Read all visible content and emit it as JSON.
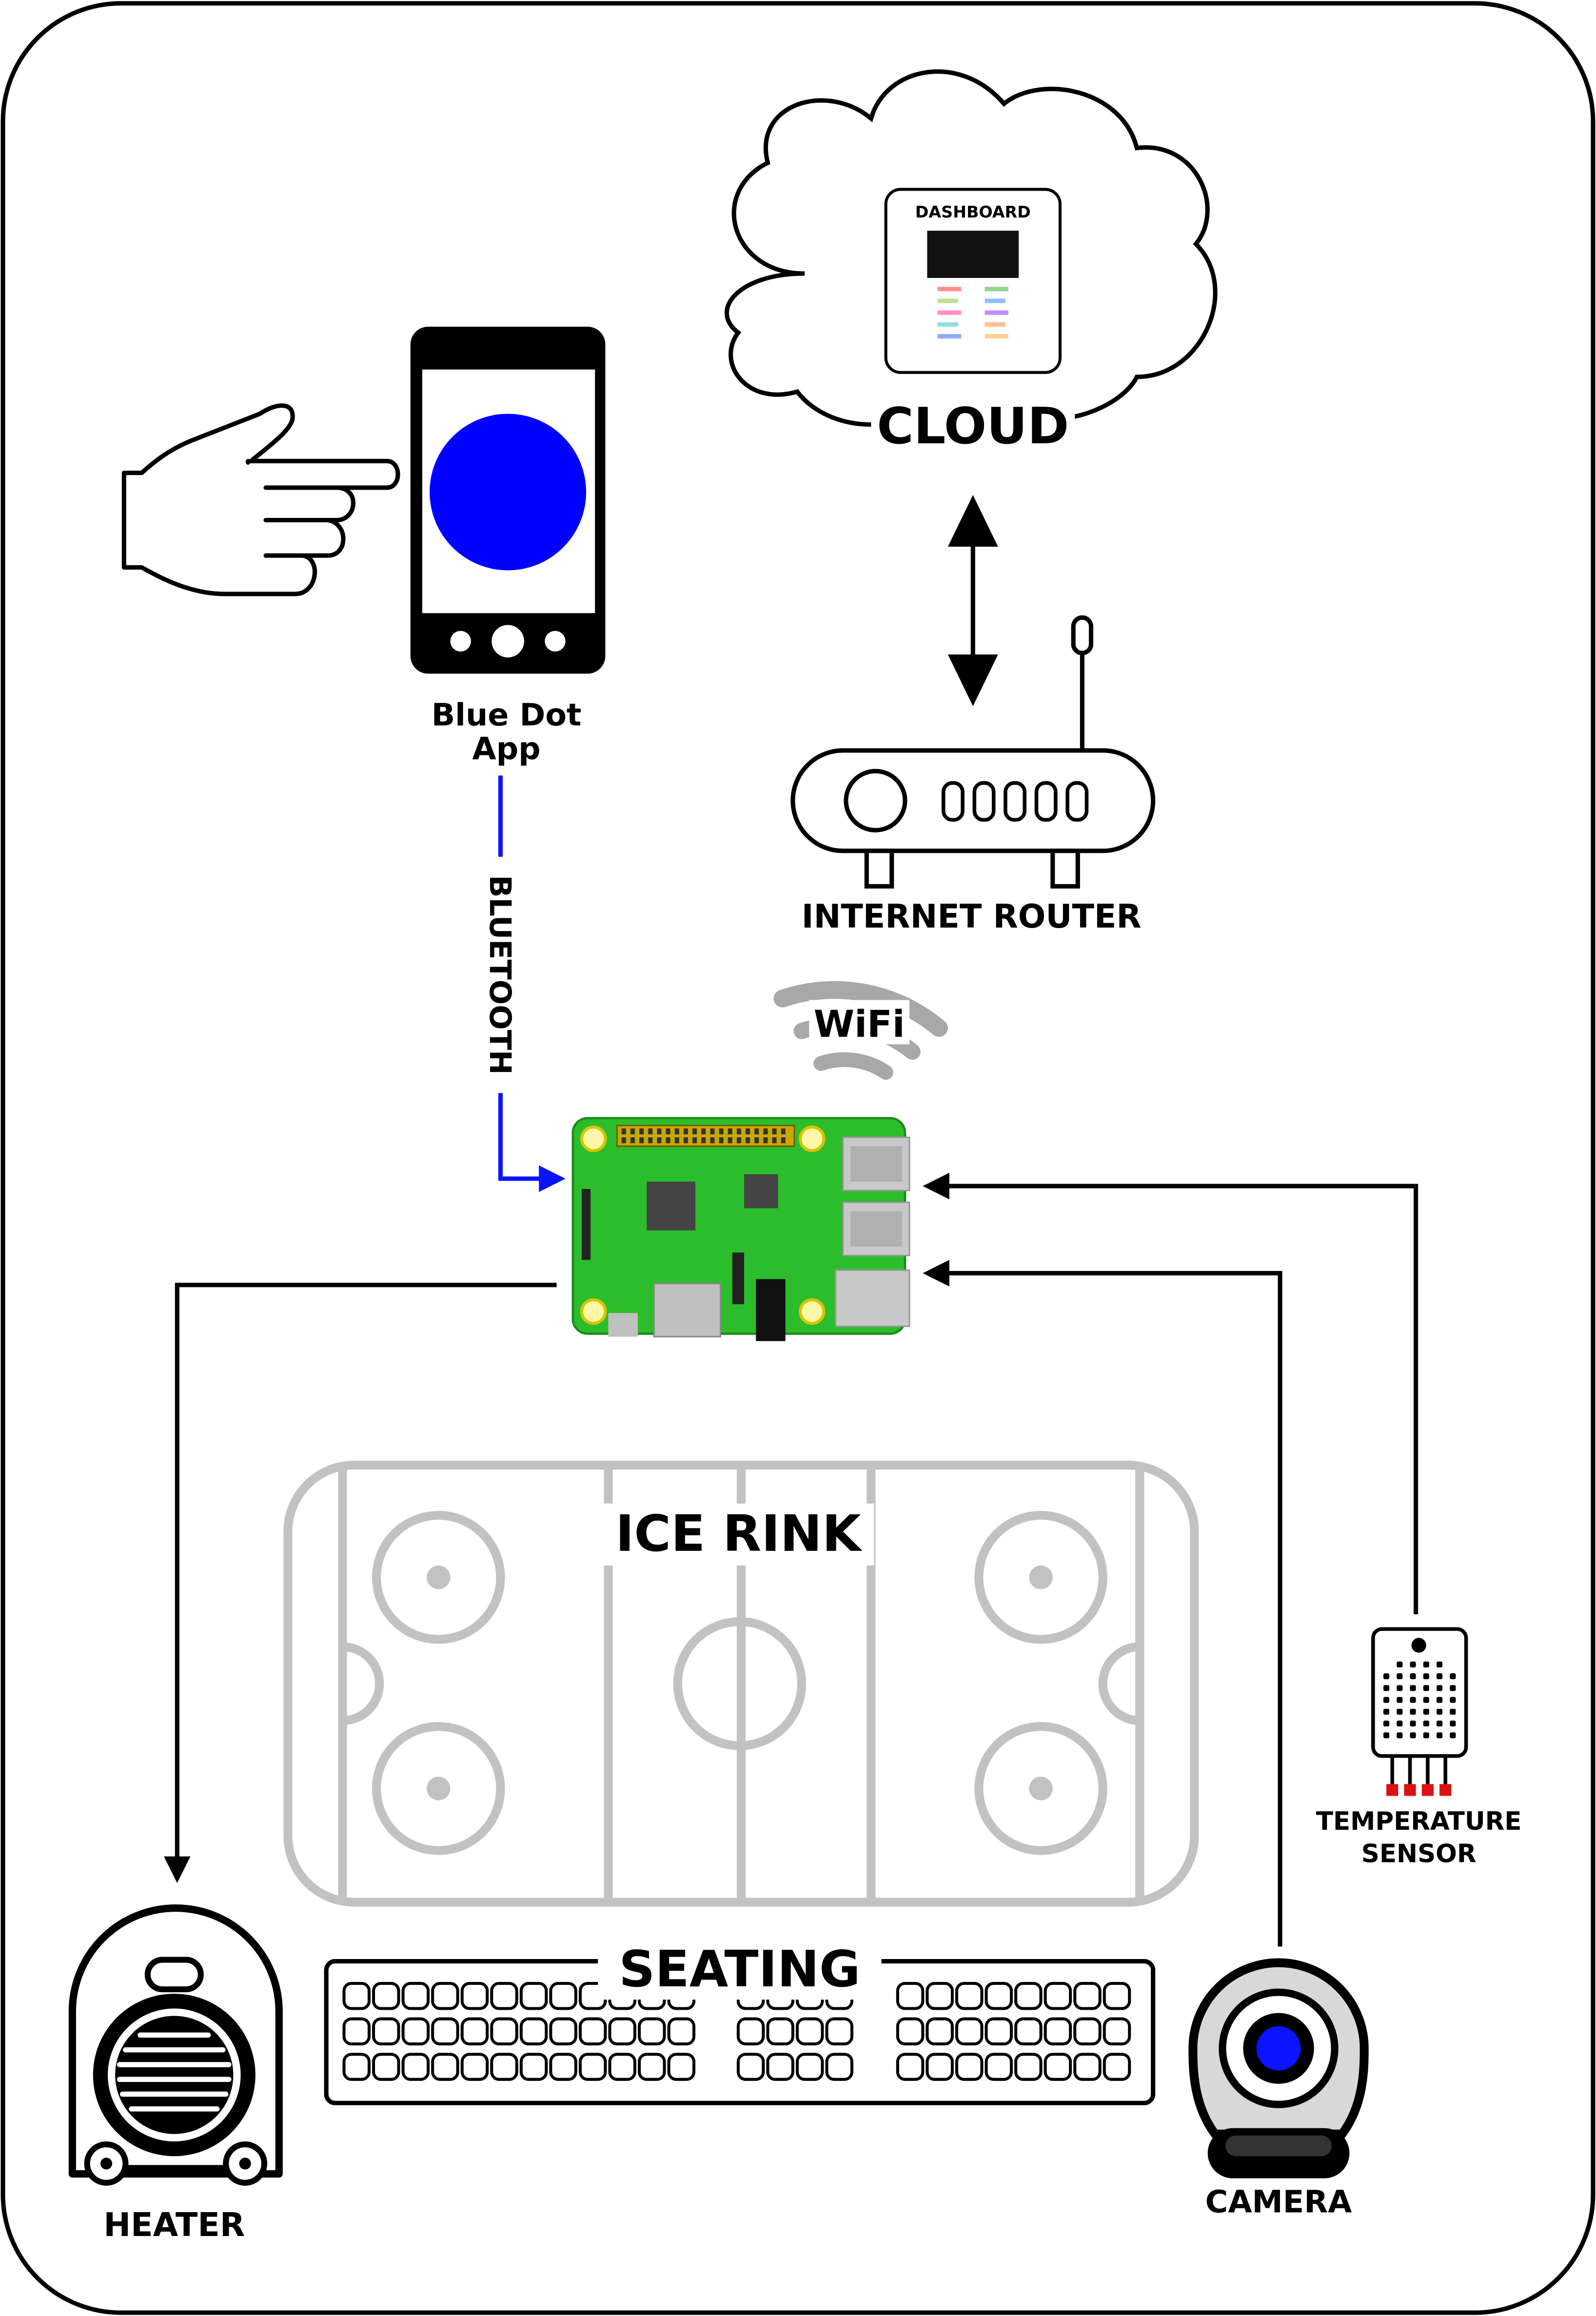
{
  "labels": {
    "cloud": "CLOUD",
    "dashboard": "DASHBOARD",
    "app_line1": "Blue Dot",
    "app_line2": "App",
    "bluetooth": "BLUETOOTH",
    "router": "INTERNET ROUTER",
    "wifi": "WiFi",
    "ice_rink": "ICE RINK",
    "seating": "SEATING",
    "temp_line1": "TEMPERATURE",
    "temp_line2": "SENSOR",
    "heater": "HEATER",
    "camera": "CAMERA"
  },
  "colors": {
    "bluetooth": "#0a14ff",
    "blue_dot": "#0000ff",
    "pcb_green": "#2bbd2b",
    "rink_gray": "#c2c2c2",
    "sensor_pins": "#dd1111"
  },
  "icons": [
    "hand-icon",
    "smartphone-icon",
    "cloud-icon",
    "router-icon",
    "wifi-icon",
    "raspberry-pi-icon",
    "temperature-sensor-icon",
    "heater-icon",
    "camera-icon"
  ]
}
